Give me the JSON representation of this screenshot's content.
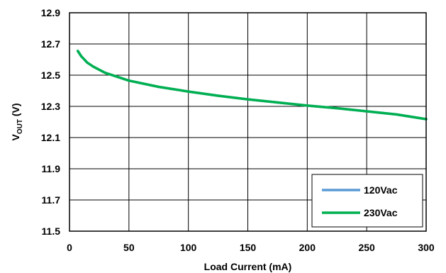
{
  "chart_data": {
    "type": "line",
    "xlabel": "Load Current (mA)",
    "ylabel_main": "V",
    "ylabel_sub": "OUT",
    "ylabel_unit": " (V)",
    "xlim": [
      0,
      300
    ],
    "ylim": [
      11.5,
      12.9
    ],
    "xticks": [
      0,
      50,
      100,
      150,
      200,
      250,
      300
    ],
    "yticks": [
      11.5,
      11.7,
      11.9,
      12.1,
      12.3,
      12.5,
      12.7,
      12.9
    ],
    "xtick_labels": [
      "0",
      "50",
      "100",
      "150",
      "200",
      "250",
      "300"
    ],
    "ytick_labels": [
      "11.5",
      "11.7",
      "11.9",
      "12.1",
      "12.3",
      "12.5",
      "12.7",
      "12.9"
    ],
    "grid": true,
    "legend_position": "bottom-right",
    "series": [
      {
        "name": "120Vac",
        "color": "#5b9bd5",
        "x": [
          7,
          10,
          15,
          20,
          30,
          40,
          50,
          75,
          100,
          125,
          150,
          175,
          200,
          225,
          250,
          275,
          300
        ],
        "y": [
          12.655,
          12.62,
          12.58,
          12.555,
          12.515,
          12.49,
          12.465,
          12.425,
          12.395,
          12.368,
          12.345,
          12.325,
          12.305,
          12.288,
          12.268,
          12.248,
          12.218
        ]
      },
      {
        "name": "230Vac",
        "color": "#00b050",
        "x": [
          7,
          10,
          15,
          20,
          30,
          40,
          50,
          75,
          100,
          125,
          150,
          175,
          200,
          225,
          250,
          275,
          300
        ],
        "y": [
          12.655,
          12.62,
          12.58,
          12.555,
          12.515,
          12.49,
          12.465,
          12.425,
          12.395,
          12.368,
          12.345,
          12.325,
          12.305,
          12.288,
          12.268,
          12.248,
          12.218
        ]
      }
    ]
  }
}
